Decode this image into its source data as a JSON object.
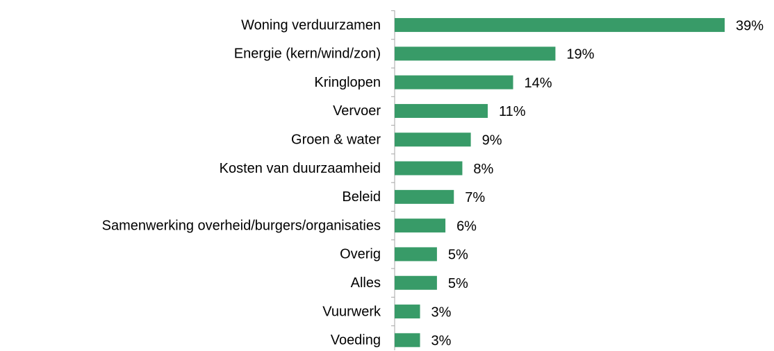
{
  "chart_data": {
    "type": "bar",
    "orientation": "horizontal",
    "categories": [
      "Woning verduurzamen",
      "Energie (kern/wind/zon)",
      "Kringlopen",
      "Vervoer",
      "Groen & water",
      "Kosten van duurzaamheid",
      "Beleid",
      "Samenwerking overheid/burgers/organisaties",
      "Overig",
      "Alles",
      "Vuurwerk",
      "Voeding"
    ],
    "values": [
      39,
      19,
      14,
      11,
      9,
      8,
      7,
      6,
      5,
      5,
      3,
      3
    ],
    "value_labels": [
      "39%",
      "19%",
      "14%",
      "11%",
      "9%",
      "8%",
      "7%",
      "6%",
      "5%",
      "5%",
      "3%",
      "3%"
    ],
    "color": "#389b68"
  }
}
